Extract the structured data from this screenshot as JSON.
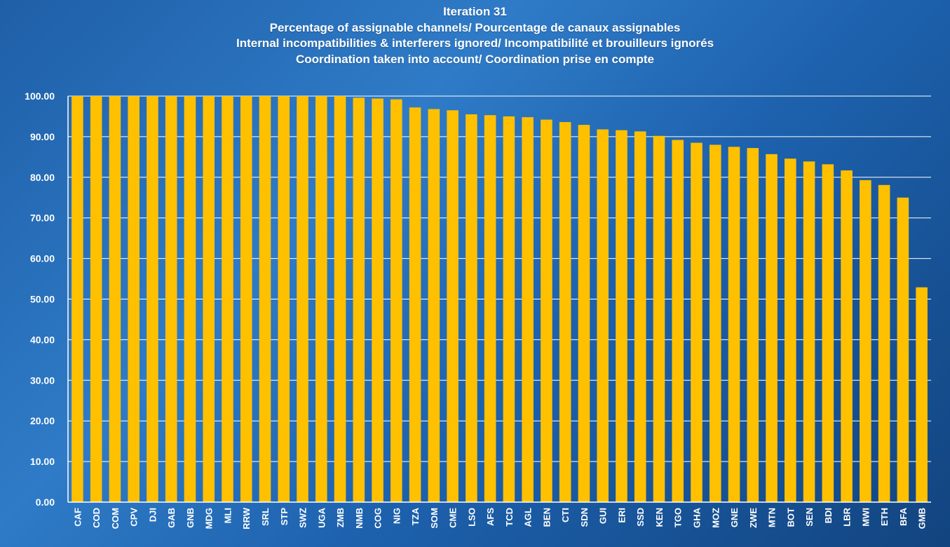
{
  "chart_data": {
    "type": "bar",
    "title": "Iteration 31",
    "subtitle": [
      "Percentage of assignable channels/ Pourcentage de canaux assignables",
      "Internal incompatibilities & interferers ignored/ Incompatibilité et brouilleurs ignorés",
      "Coordination taken into account/ Coordination prise en compte"
    ],
    "xlabel": "",
    "ylabel": "",
    "ylim": [
      0,
      100
    ],
    "yticks": [
      "0.00",
      "10.00",
      "20.00",
      "30.00",
      "40.00",
      "50.00",
      "60.00",
      "70.00",
      "80.00",
      "90.00",
      "100.00"
    ],
    "grid": true,
    "bar_color": "#ffc000",
    "categories": [
      "CAF",
      "COD",
      "COM",
      "CPV",
      "DJI",
      "GAB",
      "GNB",
      "MDG",
      "MLI",
      "RRW",
      "SRL",
      "STP",
      "SWZ",
      "UGA",
      "ZMB",
      "NMB",
      "COG",
      "NIG",
      "TZA",
      "SOM",
      "CME",
      "LSO",
      "AFS",
      "TCD",
      "AGL",
      "BEN",
      "CTI",
      "SDN",
      "GUI",
      "ERI",
      "SSD",
      "KEN",
      "TGO",
      "GHA",
      "MOZ",
      "GNE",
      "ZWE",
      "MTN",
      "BOT",
      "SEN",
      "BDI",
      "LBR",
      "MWI",
      "ETH",
      "BFA",
      "GMB"
    ],
    "values": [
      100,
      100,
      100,
      100,
      100,
      100,
      100,
      100,
      100,
      100,
      100,
      100,
      100,
      100,
      100,
      99.6,
      99.4,
      99.2,
      97.2,
      96.8,
      96.5,
      95.5,
      95.3,
      95.0,
      94.8,
      94.2,
      93.6,
      92.9,
      91.8,
      91.6,
      91.3,
      90.2,
      89.2,
      88.5,
      88.0,
      87.5,
      87.2,
      85.7,
      84.6,
      83.9,
      83.2,
      81.7,
      79.3,
      78.1,
      75.0,
      52.9
    ]
  }
}
